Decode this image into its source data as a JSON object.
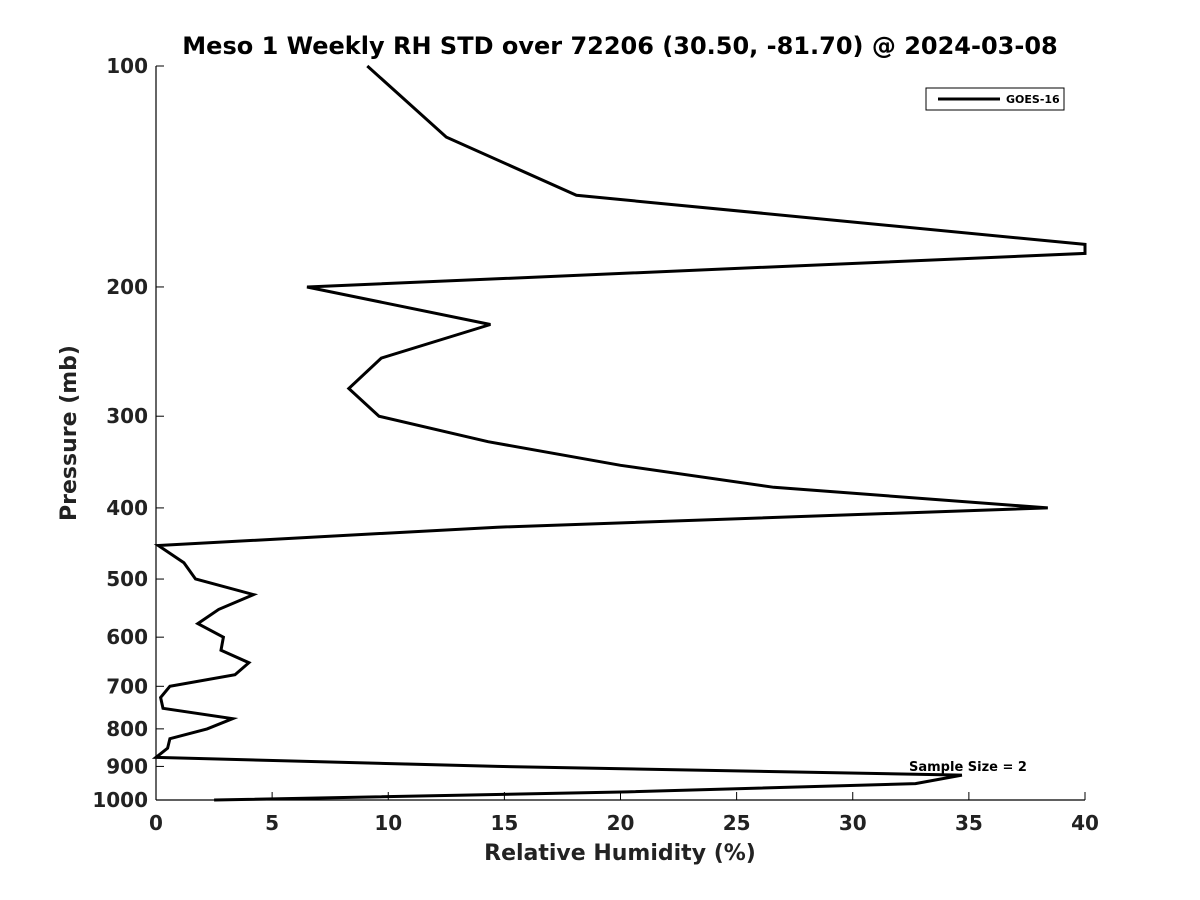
{
  "chart_data": {
    "type": "line",
    "title": "Meso 1 Weekly RH STD over 72206 (30.50, -81.70) @ 2024-03-08",
    "xlabel": "Relative Humidity (%)",
    "ylabel": "Pressure (mb)",
    "xlim": [
      0,
      40
    ],
    "ylim": [
      100,
      1000
    ],
    "y_scale": "log",
    "y_reversed": true,
    "x_ticks": [
      "0",
      "5",
      "10",
      "15",
      "20",
      "25",
      "30",
      "35",
      "40"
    ],
    "y_ticks": [
      "100",
      "200",
      "300",
      "400",
      "500",
      "600",
      "700",
      "800",
      "900",
      "1000"
    ],
    "grid": false,
    "legend_position": "top-right",
    "annotation": "Sample Size = 2",
    "series": [
      {
        "name": "GOES-16",
        "color": "#000000",
        "points": [
          {
            "x": 9.1,
            "y": 100
          },
          {
            "x": 12.5,
            "y": 125
          },
          {
            "x": 18.1,
            "y": 150
          },
          {
            "x": 40.0,
            "y": 175
          },
          {
            "x": 40.0,
            "y": 180
          },
          {
            "x": 6.5,
            "y": 200
          },
          {
            "x": 14.4,
            "y": 225
          },
          {
            "x": 9.7,
            "y": 250
          },
          {
            "x": 8.3,
            "y": 275
          },
          {
            "x": 9.6,
            "y": 300
          },
          {
            "x": 14.3,
            "y": 325
          },
          {
            "x": 20.0,
            "y": 350
          },
          {
            "x": 26.6,
            "y": 375
          },
          {
            "x": 38.4,
            "y": 400
          },
          {
            "x": 14.7,
            "y": 425
          },
          {
            "x": 0.1,
            "y": 450
          },
          {
            "x": 1.2,
            "y": 475
          },
          {
            "x": 1.7,
            "y": 500
          },
          {
            "x": 4.2,
            "y": 525
          },
          {
            "x": 2.7,
            "y": 550
          },
          {
            "x": 1.8,
            "y": 575
          },
          {
            "x": 2.9,
            "y": 600
          },
          {
            "x": 2.8,
            "y": 625
          },
          {
            "x": 4.0,
            "y": 650
          },
          {
            "x": 3.4,
            "y": 675
          },
          {
            "x": 0.6,
            "y": 700
          },
          {
            "x": 0.2,
            "y": 725
          },
          {
            "x": 0.3,
            "y": 750
          },
          {
            "x": 3.3,
            "y": 775
          },
          {
            "x": 2.2,
            "y": 800
          },
          {
            "x": 0.6,
            "y": 825
          },
          {
            "x": 0.5,
            "y": 850
          },
          {
            "x": 0.0,
            "y": 875
          },
          {
            "x": 14.7,
            "y": 900
          },
          {
            "x": 34.7,
            "y": 925
          },
          {
            "x": 32.7,
            "y": 950
          },
          {
            "x": 20.3,
            "y": 975
          },
          {
            "x": 2.5,
            "y": 1000
          }
        ]
      }
    ]
  }
}
